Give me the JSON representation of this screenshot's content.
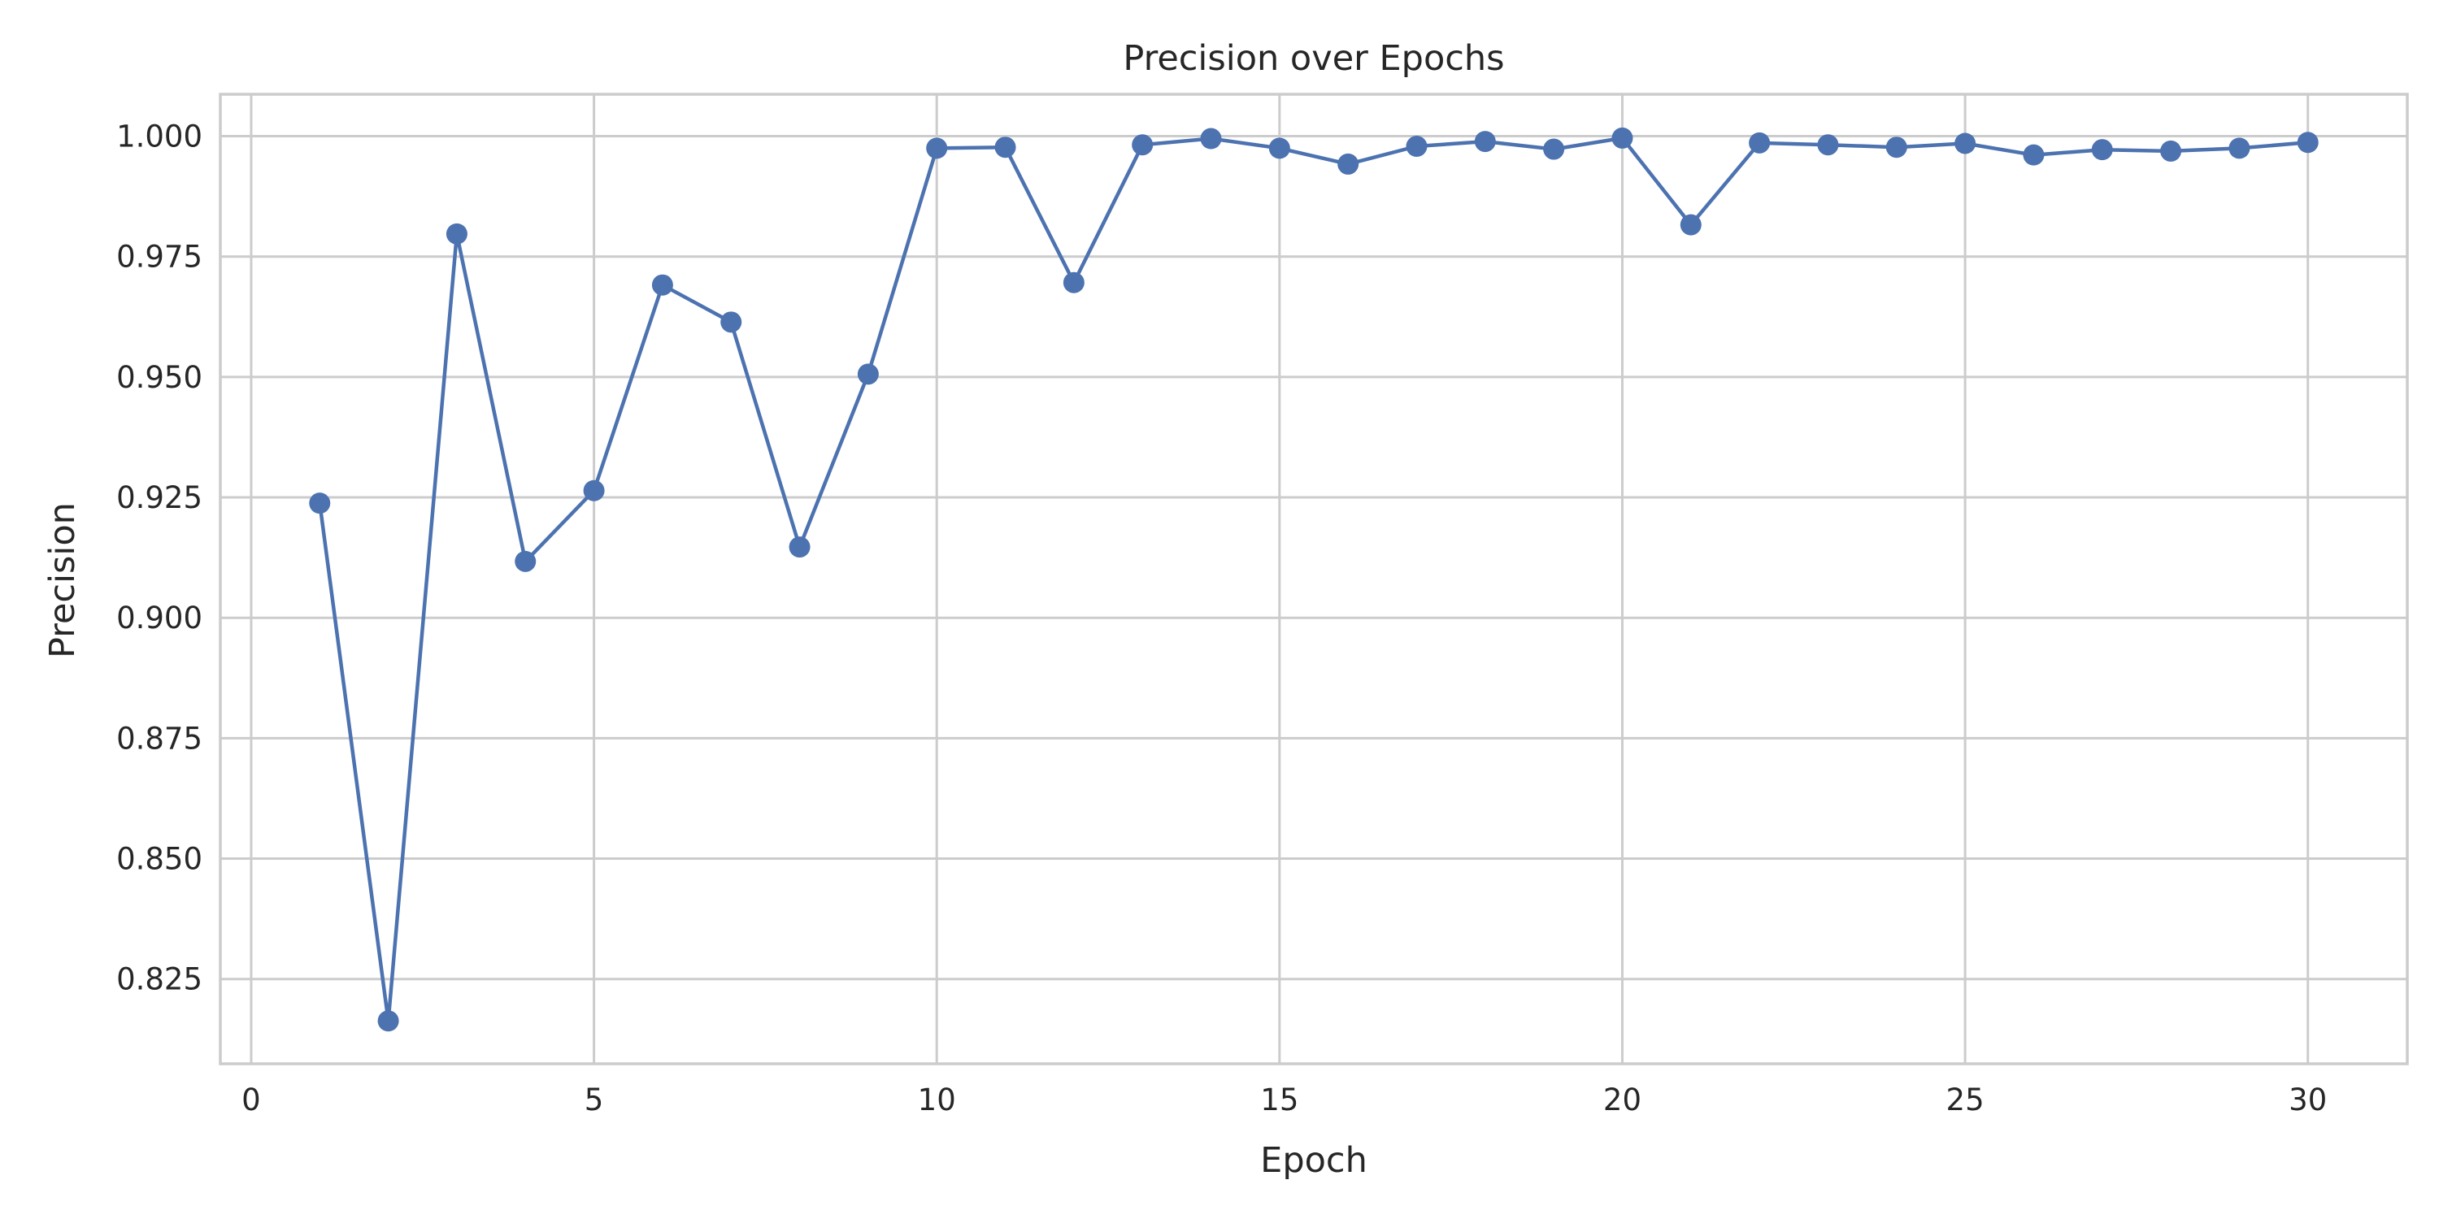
{
  "chart_data": {
    "type": "line",
    "title": "Precision over Epochs",
    "xlabel": "Epoch",
    "ylabel": "Precision",
    "xlim": [
      -0.45,
      31.45
    ],
    "ylim": [
      0.8074,
      1.0087
    ],
    "x_ticks": [
      0,
      5,
      10,
      15,
      20,
      25,
      30
    ],
    "x_tick_labels": [
      "0",
      "5",
      "10",
      "15",
      "20",
      "25",
      "30"
    ],
    "y_ticks": [
      0.825,
      0.85,
      0.875,
      0.9,
      0.925,
      0.95,
      0.975,
      1.0
    ],
    "y_tick_labels": [
      "0.825",
      "0.850",
      "0.875",
      "0.900",
      "0.925",
      "0.950",
      "0.975",
      "1.000"
    ],
    "grid": true,
    "color": "#4c72b0",
    "x": [
      1,
      2,
      3,
      4,
      5,
      6,
      7,
      8,
      9,
      10,
      11,
      12,
      13,
      14,
      15,
      16,
      17,
      18,
      19,
      20,
      21,
      22,
      23,
      24,
      25,
      26,
      27,
      28,
      29,
      30
    ],
    "series": [
      {
        "marker": "circle",
        "values": [
          0.9238,
          0.8163,
          0.9797,
          0.9117,
          0.9264,
          0.9691,
          0.9614,
          0.9147,
          0.9506,
          0.9975,
          0.9977,
          0.9696,
          0.9982,
          0.9995,
          0.9975,
          0.9942,
          0.9979,
          0.9989,
          0.9973,
          0.9996,
          0.9816,
          0.9986,
          0.9982,
          0.9977,
          0.9985,
          0.9961,
          0.9972,
          0.9969,
          0.9975,
          0.9987
        ]
      }
    ]
  }
}
